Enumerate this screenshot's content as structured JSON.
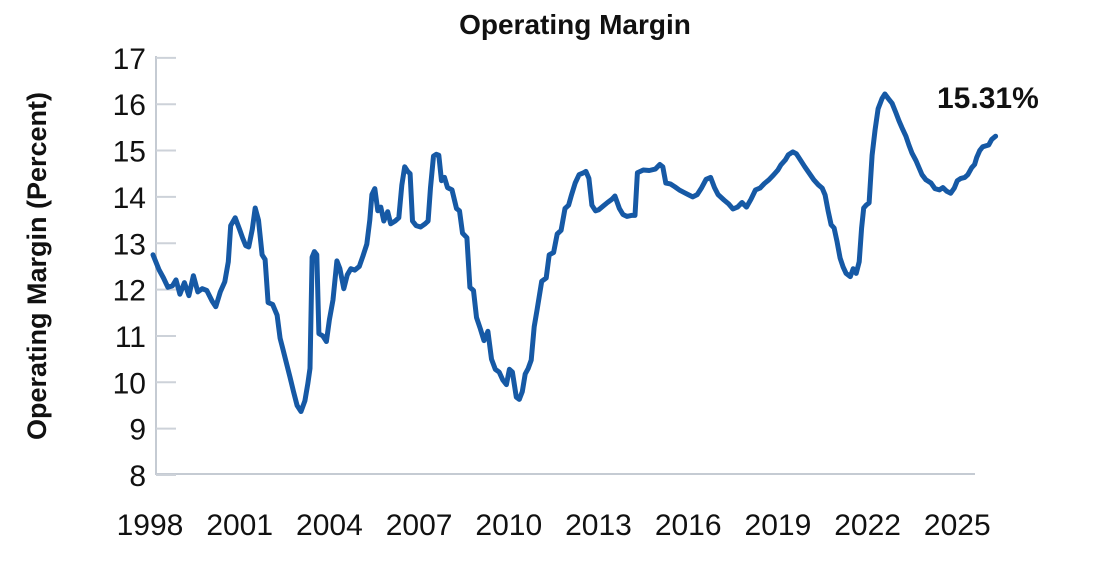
{
  "chart_data": {
    "type": "line",
    "title": "Operating Margin",
    "ylabel": "Operating Margin (Percent)",
    "xlabel": "",
    "end_label": "15.31%",
    "latest_value": 15.31,
    "ylim": [
      8,
      17
    ],
    "xlim": [
      1997.9,
      2026.6
    ],
    "y_ticks": [
      8,
      9,
      10,
      11,
      12,
      13,
      14,
      15,
      16,
      17
    ],
    "x_ticks": [
      1998,
      2001,
      2004,
      2007,
      2010,
      2013,
      2016,
      2019,
      2022,
      2025
    ],
    "grid": false,
    "legend_position": "none",
    "line_color": "#1659a5",
    "axis_color": "#c5cbd3",
    "tick_color": "#cdd2d9",
    "text_color": "#111111",
    "series": [
      {
        "name": "Operating Margin",
        "points": [
          [
            1998.1,
            12.75
          ],
          [
            1998.3,
            12.43
          ],
          [
            1998.45,
            12.25
          ],
          [
            1998.6,
            12.05
          ],
          [
            1998.75,
            12.08
          ],
          [
            1998.87,
            12.21
          ],
          [
            1999.0,
            11.9
          ],
          [
            1999.15,
            12.15
          ],
          [
            1999.3,
            11.87
          ],
          [
            1999.45,
            12.3
          ],
          [
            1999.6,
            11.95
          ],
          [
            1999.75,
            12.02
          ],
          [
            1999.9,
            11.98
          ],
          [
            2000.08,
            11.75
          ],
          [
            2000.2,
            11.63
          ],
          [
            2000.35,
            11.95
          ],
          [
            2000.5,
            12.17
          ],
          [
            2000.62,
            12.6
          ],
          [
            2000.7,
            13.38
          ],
          [
            2000.85,
            13.55
          ],
          [
            2001.0,
            13.29
          ],
          [
            2001.1,
            13.11
          ],
          [
            2001.2,
            12.95
          ],
          [
            2001.3,
            12.92
          ],
          [
            2001.42,
            13.3
          ],
          [
            2001.52,
            13.76
          ],
          [
            2001.63,
            13.5
          ],
          [
            2001.75,
            12.75
          ],
          [
            2001.85,
            12.65
          ],
          [
            2001.95,
            11.72
          ],
          [
            2002.1,
            11.68
          ],
          [
            2002.25,
            11.45
          ],
          [
            2002.35,
            10.95
          ],
          [
            2002.45,
            10.7
          ],
          [
            2002.55,
            10.45
          ],
          [
            2002.68,
            10.12
          ],
          [
            2002.8,
            9.8
          ],
          [
            2002.92,
            9.5
          ],
          [
            2003.05,
            9.37
          ],
          [
            2003.18,
            9.6
          ],
          [
            2003.28,
            9.98
          ],
          [
            2003.35,
            10.3
          ],
          [
            2003.42,
            12.7
          ],
          [
            2003.5,
            12.82
          ],
          [
            2003.58,
            12.75
          ],
          [
            2003.65,
            11.05
          ],
          [
            2003.78,
            11.0
          ],
          [
            2003.9,
            10.88
          ],
          [
            2004.0,
            11.35
          ],
          [
            2004.12,
            11.78
          ],
          [
            2004.25,
            12.62
          ],
          [
            2004.35,
            12.45
          ],
          [
            2004.48,
            12.02
          ],
          [
            2004.6,
            12.32
          ],
          [
            2004.72,
            12.45
          ],
          [
            2004.85,
            12.42
          ],
          [
            2005.0,
            12.5
          ],
          [
            2005.12,
            12.72
          ],
          [
            2005.25,
            12.98
          ],
          [
            2005.35,
            13.5
          ],
          [
            2005.42,
            14.05
          ],
          [
            2005.52,
            14.18
          ],
          [
            2005.62,
            13.7
          ],
          [
            2005.72,
            13.78
          ],
          [
            2005.82,
            13.48
          ],
          [
            2005.95,
            13.68
          ],
          [
            2006.05,
            13.42
          ],
          [
            2006.2,
            13.48
          ],
          [
            2006.32,
            13.55
          ],
          [
            2006.42,
            14.25
          ],
          [
            2006.52,
            14.65
          ],
          [
            2006.62,
            14.55
          ],
          [
            2006.7,
            14.5
          ],
          [
            2006.78,
            13.48
          ],
          [
            2006.9,
            13.38
          ],
          [
            2007.05,
            13.35
          ],
          [
            2007.2,
            13.42
          ],
          [
            2007.3,
            13.48
          ],
          [
            2007.38,
            14.2
          ],
          [
            2007.48,
            14.88
          ],
          [
            2007.58,
            14.92
          ],
          [
            2007.66,
            14.9
          ],
          [
            2007.75,
            14.35
          ],
          [
            2007.85,
            14.42
          ],
          [
            2007.95,
            14.2
          ],
          [
            2008.1,
            14.15
          ],
          [
            2008.25,
            13.75
          ],
          [
            2008.35,
            13.7
          ],
          [
            2008.45,
            13.22
          ],
          [
            2008.6,
            13.12
          ],
          [
            2008.7,
            12.05
          ],
          [
            2008.82,
            11.98
          ],
          [
            2008.92,
            11.4
          ],
          [
            2009.05,
            11.15
          ],
          [
            2009.17,
            10.9
          ],
          [
            2009.3,
            11.1
          ],
          [
            2009.42,
            10.5
          ],
          [
            2009.55,
            10.28
          ],
          [
            2009.68,
            10.22
          ],
          [
            2009.8,
            10.05
          ],
          [
            2009.92,
            9.95
          ],
          [
            2010.02,
            10.28
          ],
          [
            2010.12,
            10.22
          ],
          [
            2010.25,
            9.68
          ],
          [
            2010.35,
            9.63
          ],
          [
            2010.45,
            9.8
          ],
          [
            2010.55,
            10.18
          ],
          [
            2010.65,
            10.3
          ],
          [
            2010.75,
            10.48
          ],
          [
            2010.85,
            11.2
          ],
          [
            2010.95,
            11.58
          ],
          [
            2011.1,
            12.18
          ],
          [
            2011.25,
            12.25
          ],
          [
            2011.35,
            12.75
          ],
          [
            2011.5,
            12.8
          ],
          [
            2011.62,
            13.2
          ],
          [
            2011.75,
            13.28
          ],
          [
            2011.88,
            13.75
          ],
          [
            2012.0,
            13.82
          ],
          [
            2012.1,
            14.05
          ],
          [
            2012.22,
            14.3
          ],
          [
            2012.35,
            14.48
          ],
          [
            2012.5,
            14.52
          ],
          [
            2012.58,
            14.55
          ],
          [
            2012.68,
            14.4
          ],
          [
            2012.78,
            13.82
          ],
          [
            2012.9,
            13.7
          ],
          [
            2013.0,
            13.72
          ],
          [
            2013.15,
            13.8
          ],
          [
            2013.3,
            13.88
          ],
          [
            2013.45,
            13.95
          ],
          [
            2013.55,
            14.02
          ],
          [
            2013.7,
            13.75
          ],
          [
            2013.82,
            13.62
          ],
          [
            2013.95,
            13.58
          ],
          [
            2014.1,
            13.6
          ],
          [
            2014.22,
            13.6
          ],
          [
            2014.3,
            14.52
          ],
          [
            2014.5,
            14.58
          ],
          [
            2014.7,
            14.57
          ],
          [
            2014.9,
            14.6
          ],
          [
            2015.05,
            14.7
          ],
          [
            2015.15,
            14.65
          ],
          [
            2015.25,
            14.3
          ],
          [
            2015.4,
            14.28
          ],
          [
            2015.55,
            14.22
          ],
          [
            2015.7,
            14.15
          ],
          [
            2015.85,
            14.1
          ],
          [
            2016.0,
            14.05
          ],
          [
            2016.15,
            14.0
          ],
          [
            2016.3,
            14.05
          ],
          [
            2016.45,
            14.2
          ],
          [
            2016.6,
            14.38
          ],
          [
            2016.75,
            14.42
          ],
          [
            2016.88,
            14.2
          ],
          [
            2017.0,
            14.05
          ],
          [
            2017.2,
            13.93
          ],
          [
            2017.35,
            13.85
          ],
          [
            2017.5,
            13.74
          ],
          [
            2017.65,
            13.78
          ],
          [
            2017.8,
            13.88
          ],
          [
            2017.95,
            13.78
          ],
          [
            2018.1,
            13.95
          ],
          [
            2018.25,
            14.15
          ],
          [
            2018.4,
            14.19
          ],
          [
            2018.55,
            14.29
          ],
          [
            2018.7,
            14.37
          ],
          [
            2018.85,
            14.47
          ],
          [
            2019.0,
            14.58
          ],
          [
            2019.1,
            14.69
          ],
          [
            2019.25,
            14.8
          ],
          [
            2019.35,
            14.91
          ],
          [
            2019.5,
            14.97
          ],
          [
            2019.62,
            14.93
          ],
          [
            2019.75,
            14.8
          ],
          [
            2019.9,
            14.65
          ],
          [
            2020.05,
            14.51
          ],
          [
            2020.2,
            14.37
          ],
          [
            2020.35,
            14.26
          ],
          [
            2020.48,
            14.19
          ],
          [
            2020.58,
            14.04
          ],
          [
            2020.68,
            13.7
          ],
          [
            2020.78,
            13.4
          ],
          [
            2020.88,
            13.33
          ],
          [
            2020.98,
            13.03
          ],
          [
            2021.08,
            12.68
          ],
          [
            2021.18,
            12.49
          ],
          [
            2021.28,
            12.35
          ],
          [
            2021.42,
            12.28
          ],
          [
            2021.52,
            12.45
          ],
          [
            2021.62,
            12.35
          ],
          [
            2021.72,
            12.6
          ],
          [
            2021.8,
            13.33
          ],
          [
            2021.87,
            13.76
          ],
          [
            2021.95,
            13.82
          ],
          [
            2022.05,
            13.87
          ],
          [
            2022.15,
            14.9
          ],
          [
            2022.25,
            15.45
          ],
          [
            2022.35,
            15.9
          ],
          [
            2022.48,
            16.12
          ],
          [
            2022.58,
            16.22
          ],
          [
            2022.72,
            16.1
          ],
          [
            2022.82,
            16.02
          ],
          [
            2022.95,
            15.81
          ],
          [
            2023.05,
            15.64
          ],
          [
            2023.15,
            15.49
          ],
          [
            2023.28,
            15.31
          ],
          [
            2023.38,
            15.12
          ],
          [
            2023.48,
            14.95
          ],
          [
            2023.62,
            14.78
          ],
          [
            2023.72,
            14.63
          ],
          [
            2023.82,
            14.48
          ],
          [
            2023.95,
            14.37
          ],
          [
            2024.12,
            14.3
          ],
          [
            2024.25,
            14.18
          ],
          [
            2024.4,
            14.15
          ],
          [
            2024.52,
            14.2
          ],
          [
            2024.65,
            14.12
          ],
          [
            2024.78,
            14.08
          ],
          [
            2024.9,
            14.19
          ],
          [
            2025.0,
            14.35
          ],
          [
            2025.12,
            14.4
          ],
          [
            2025.25,
            14.42
          ],
          [
            2025.35,
            14.48
          ],
          [
            2025.48,
            14.63
          ],
          [
            2025.58,
            14.7
          ],
          [
            2025.65,
            14.85
          ],
          [
            2025.75,
            15.0
          ],
          [
            2025.85,
            15.08
          ],
          [
            2025.95,
            15.1
          ],
          [
            2026.05,
            15.12
          ],
          [
            2026.15,
            15.24
          ],
          [
            2026.28,
            15.31
          ]
        ]
      }
    ]
  }
}
